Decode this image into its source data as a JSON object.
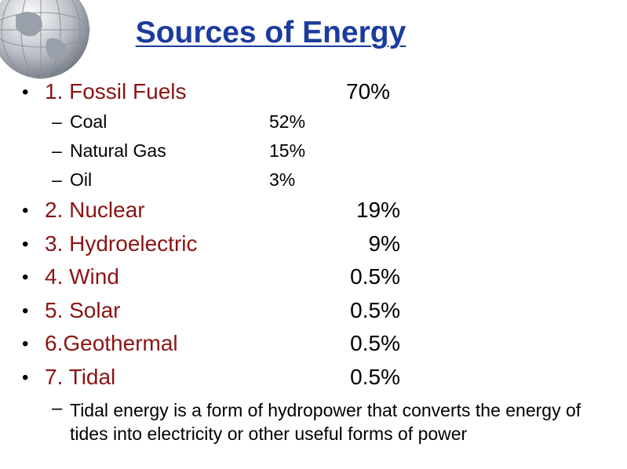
{
  "title": "Sources of Energy",
  "items": [
    {
      "label": "1. Fossil Fuels",
      "value": "70%",
      "subitems": [
        {
          "label": "Coal",
          "value": "52%"
        },
        {
          "label": "Natural Gas",
          "value": "15%"
        },
        {
          "label": "Oil",
          "value": "3%"
        }
      ]
    },
    {
      "label": "2. Nuclear",
      "value": "19%"
    },
    {
      "label": "3. Hydroelectric",
      "value": "9%"
    },
    {
      "label": "4. Wind",
      "value": "0.5%"
    },
    {
      "label": "5. Solar",
      "value": "0.5%"
    },
    {
      "label": "6.Geothermal",
      "value": "0.5%"
    },
    {
      "label": "7. Tidal",
      "value": "0.5%"
    }
  ],
  "note": "Tidal energy is a form of hydropower that converts the energy of tides into electricity or other useful forms of power"
}
